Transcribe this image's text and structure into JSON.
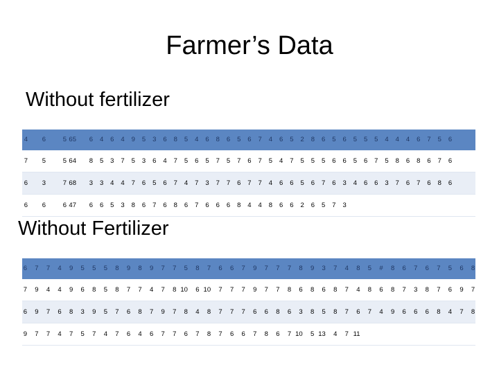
{
  "title": "Farmer’s Data",
  "section_a": {
    "heading": "Without fertilizer",
    "rows": [
      [
        "4",
        "6",
        "5",
        "65",
        "6",
        "4",
        "6",
        "4",
        "9",
        "5",
        "3",
        "6",
        "8",
        "5",
        "4",
        "6",
        "8",
        "6",
        "5",
        "6",
        "7",
        "4",
        "6",
        "5",
        "2",
        "8",
        "6",
        "5",
        "6",
        "5",
        "5",
        "5",
        "4",
        "4",
        "4",
        "6",
        "7",
        "5",
        "6"
      ],
      [
        "7",
        "5",
        "5",
        "64",
        "8",
        "5",
        "3",
        "7",
        "5",
        "3",
        "6",
        "4",
        "7",
        "5",
        "6",
        "5",
        "7",
        "5",
        "7",
        "6",
        "7",
        "5",
        "4",
        "7",
        "5",
        "5",
        "5",
        "6",
        "6",
        "5",
        "6",
        "7",
        "5",
        "8",
        "6",
        "8",
        "6",
        "7",
        "6"
      ],
      [
        "6",
        "3",
        "7",
        "68",
        "3",
        "3",
        "4",
        "4",
        "7",
        "6",
        "5",
        "6",
        "7",
        "4",
        "7",
        "3",
        "7",
        "7",
        "6",
        "7",
        "7",
        "4",
        "6",
        "6",
        "5",
        "6",
        "7",
        "6",
        "3",
        "4",
        "6",
        "6",
        "3",
        "7",
        "6",
        "7",
        "6",
        "8",
        "6"
      ],
      [
        "6",
        "6",
        "6",
        "47",
        "6",
        "6",
        "5",
        "3",
        "8",
        "6",
        "7",
        "6",
        "8",
        "6",
        "7",
        "6",
        "6",
        "6",
        "8",
        "4",
        "4",
        "8",
        "6",
        "6",
        "2",
        "6",
        "5",
        "7",
        "3"
      ]
    ]
  },
  "section_b": {
    "heading": "Without Fertilizer",
    "rows": [
      [
        "6",
        "7",
        "7",
        "4",
        "9",
        "5",
        "5",
        "5",
        "8",
        "9",
        "8",
        "9",
        "7",
        "7",
        "5",
        "8",
        "7",
        "6",
        "6",
        "7",
        "9",
        "7",
        "7",
        "7",
        "8",
        "9",
        "3",
        "7",
        "4",
        "8",
        "5",
        "#",
        "8",
        "6",
        "7",
        "6",
        "7",
        "5",
        "6",
        "8"
      ],
      [
        "7",
        "9",
        "4",
        "4",
        "9",
        "6",
        "8",
        "5",
        "8",
        "7",
        "7",
        "4",
        "7",
        "8",
        "10",
        "6",
        "10",
        "7",
        "7",
        "7",
        "9",
        "7",
        "7",
        "8",
        "6",
        "8",
        "6",
        "8",
        "7",
        "4",
        "8",
        "6",
        "8",
        "7",
        "3",
        "8",
        "7",
        "6",
        "9",
        "7"
      ],
      [
        "6",
        "9",
        "7",
        "6",
        "8",
        "3",
        "9",
        "5",
        "7",
        "6",
        "8",
        "7",
        "9",
        "7",
        "8",
        "4",
        "8",
        "7",
        "7",
        "7",
        "6",
        "6",
        "8",
        "6",
        "3",
        "8",
        "5",
        "8",
        "7",
        "6",
        "7",
        "4",
        "9",
        "6",
        "6",
        "6",
        "8",
        "4",
        "7",
        "8"
      ],
      [
        "9",
        "7",
        "7",
        "4",
        "7",
        "5",
        "7",
        "4",
        "7",
        "6",
        "4",
        "6",
        "7",
        "7",
        "6",
        "7",
        "8",
        "7",
        "6",
        "6",
        "7",
        "8",
        "6",
        "7",
        "10",
        "5",
        "13",
        "4",
        "7",
        "11"
      ]
    ]
  }
}
